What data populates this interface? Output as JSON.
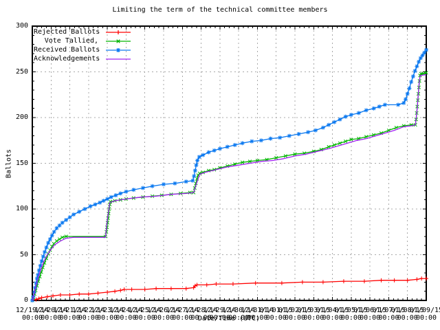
{
  "title": "Limiting the term of the technical committee members",
  "colors": {
    "background": "#ffffff",
    "axis": "#000000",
    "grid": "#a8a8a8",
    "rejected": "#ff0000",
    "tallied": "#00b400",
    "received": "#0a78f0",
    "acknowledgements": "#a020f0"
  },
  "chart_data": {
    "type": "line",
    "title": "Limiting the term of the technical committee members",
    "xlabel": "Date/Time (UTC)",
    "ylabel": "Ballots",
    "ylim": [
      0,
      300
    ],
    "y_tick_step": 50,
    "y_minor_step": 10,
    "x_range_days": 21,
    "x_minor_per_major": 4,
    "grid": true,
    "legend_position": "top-left-inside",
    "x_tick_time": "00:00",
    "x_tick_dates": [
      "12/19/14",
      "12/20/14",
      "12/21/14",
      "12/22/14",
      "12/23/14",
      "12/24/14",
      "12/25/14",
      "12/26/14",
      "12/27/14",
      "12/28/14",
      "12/29/14",
      "12/30/14",
      "12/31/14",
      "01/01/15",
      "01/02/15",
      "01/03/15",
      "01/04/15",
      "01/05/15",
      "01/06/15",
      "01/07/15",
      "01/08/15",
      "01/09/15"
    ],
    "series": [
      {
        "name": "Rejected Ballots",
        "color": "#ff0000",
        "marker": "plus",
        "points": [
          [
            0,
            0
          ],
          [
            0.2,
            1
          ],
          [
            0.35,
            2
          ],
          [
            0.5,
            3
          ],
          [
            0.8,
            4
          ],
          [
            1.1,
            5
          ],
          [
            1.5,
            6
          ],
          [
            2.0,
            6
          ],
          [
            2.5,
            7
          ],
          [
            3.0,
            7
          ],
          [
            3.5,
            8
          ],
          [
            4.0,
            9
          ],
          [
            4.4,
            10
          ],
          [
            4.7,
            11
          ],
          [
            4.9,
            12
          ],
          [
            5.3,
            12
          ],
          [
            6.0,
            12
          ],
          [
            6.6,
            13
          ],
          [
            7.4,
            13
          ],
          [
            8.2,
            13
          ],
          [
            8.6,
            14
          ],
          [
            8.68,
            16
          ],
          [
            8.78,
            17
          ],
          [
            9.3,
            17
          ],
          [
            9.8,
            18
          ],
          [
            10.7,
            18
          ],
          [
            11.9,
            19
          ],
          [
            13.3,
            19
          ],
          [
            14.4,
            20
          ],
          [
            15.5,
            20
          ],
          [
            16.6,
            21
          ],
          [
            17.7,
            21
          ],
          [
            18.6,
            22
          ],
          [
            19.3,
            22
          ],
          [
            20.0,
            22
          ],
          [
            20.5,
            23
          ],
          [
            20.75,
            24
          ],
          [
            21,
            24
          ]
        ]
      },
      {
        "name": "Vote Tallied,",
        "color": "#00b400",
        "marker": "cross",
        "points": [
          [
            0,
            0
          ],
          [
            0.06,
            3
          ],
          [
            0.12,
            7
          ],
          [
            0.18,
            11
          ],
          [
            0.25,
            16
          ],
          [
            0.32,
            21
          ],
          [
            0.4,
            26
          ],
          [
            0.48,
            31
          ],
          [
            0.56,
            36
          ],
          [
            0.65,
            41
          ],
          [
            0.75,
            46
          ],
          [
            0.85,
            51
          ],
          [
            0.95,
            55
          ],
          [
            1.05,
            59
          ],
          [
            1.15,
            62
          ],
          [
            1.3,
            65
          ],
          [
            1.45,
            67
          ],
          [
            1.6,
            69
          ],
          [
            1.8,
            70
          ],
          [
            3.9,
            70
          ],
          [
            3.95,
            75
          ],
          [
            3.98,
            80
          ],
          [
            4.01,
            85
          ],
          [
            4.04,
            90
          ],
          [
            4.07,
            95
          ],
          [
            4.1,
            100
          ],
          [
            4.13,
            105
          ],
          [
            4.16,
            108
          ],
          [
            4.4,
            109
          ],
          [
            4.7,
            110
          ],
          [
            5.0,
            111
          ],
          [
            5.4,
            112
          ],
          [
            5.9,
            113
          ],
          [
            6.4,
            114
          ],
          [
            6.9,
            115
          ],
          [
            7.4,
            116
          ],
          [
            7.9,
            117
          ],
          [
            8.4,
            118
          ],
          [
            8.6,
            118
          ],
          [
            8.66,
            123
          ],
          [
            8.72,
            128
          ],
          [
            8.78,
            133
          ],
          [
            8.84,
            137
          ],
          [
            8.92,
            139
          ],
          [
            9.1,
            140
          ],
          [
            9.4,
            142
          ],
          [
            9.7,
            143
          ],
          [
            10.0,
            145
          ],
          [
            10.4,
            147
          ],
          [
            10.8,
            149
          ],
          [
            11.2,
            151
          ],
          [
            11.6,
            152
          ],
          [
            12.0,
            153
          ],
          [
            12.5,
            154
          ],
          [
            13.0,
            156
          ],
          [
            13.5,
            158
          ],
          [
            14.0,
            160
          ],
          [
            14.5,
            161
          ],
          [
            15.0,
            163
          ],
          [
            15.4,
            165
          ],
          [
            15.8,
            168
          ],
          [
            16.1,
            170
          ],
          [
            16.4,
            172
          ],
          [
            16.7,
            174
          ],
          [
            17.0,
            176
          ],
          [
            17.4,
            177
          ],
          [
            17.8,
            179
          ],
          [
            18.2,
            181
          ],
          [
            18.6,
            183
          ],
          [
            19.0,
            186
          ],
          [
            19.4,
            189
          ],
          [
            19.8,
            191
          ],
          [
            20.2,
            192
          ],
          [
            20.42,
            192
          ],
          [
            20.46,
            198
          ],
          [
            20.49,
            205
          ],
          [
            20.52,
            212
          ],
          [
            20.55,
            219
          ],
          [
            20.58,
            226
          ],
          [
            20.61,
            233
          ],
          [
            20.64,
            240
          ],
          [
            20.67,
            246
          ],
          [
            20.72,
            248
          ],
          [
            20.85,
            248
          ],
          [
            21,
            249
          ]
        ]
      },
      {
        "name": "Received Ballots",
        "color": "#0a78f0",
        "marker": "star",
        "points": [
          [
            0,
            0
          ],
          [
            0.05,
            4
          ],
          [
            0.1,
            9
          ],
          [
            0.15,
            14
          ],
          [
            0.2,
            19
          ],
          [
            0.25,
            24
          ],
          [
            0.3,
            28
          ],
          [
            0.36,
            33
          ],
          [
            0.43,
            38
          ],
          [
            0.5,
            43
          ],
          [
            0.58,
            48
          ],
          [
            0.66,
            53
          ],
          [
            0.75,
            58
          ],
          [
            0.85,
            63
          ],
          [
            0.95,
            67
          ],
          [
            1.05,
            71
          ],
          [
            1.16,
            75
          ],
          [
            1.3,
            79
          ],
          [
            1.45,
            82
          ],
          [
            1.6,
            85
          ],
          [
            1.8,
            88
          ],
          [
            2.0,
            91
          ],
          [
            2.2,
            94
          ],
          [
            2.5,
            97
          ],
          [
            2.8,
            100
          ],
          [
            3.1,
            103
          ],
          [
            3.35,
            105
          ],
          [
            3.6,
            107
          ],
          [
            3.8,
            109
          ],
          [
            4.0,
            111
          ],
          [
            4.2,
            113
          ],
          [
            4.45,
            115
          ],
          [
            4.7,
            117
          ],
          [
            5.0,
            119
          ],
          [
            5.4,
            121
          ],
          [
            5.9,
            123
          ],
          [
            6.4,
            125
          ],
          [
            7.0,
            127
          ],
          [
            7.6,
            128
          ],
          [
            8.2,
            130
          ],
          [
            8.55,
            131
          ],
          [
            8.62,
            136
          ],
          [
            8.68,
            142
          ],
          [
            8.74,
            148
          ],
          [
            8.8,
            153
          ],
          [
            8.9,
            157
          ],
          [
            9.1,
            159
          ],
          [
            9.4,
            162
          ],
          [
            9.7,
            164
          ],
          [
            10.0,
            166
          ],
          [
            10.4,
            168
          ],
          [
            10.8,
            170
          ],
          [
            11.2,
            172
          ],
          [
            11.7,
            174
          ],
          [
            12.2,
            175
          ],
          [
            12.7,
            177
          ],
          [
            13.2,
            178
          ],
          [
            13.7,
            180
          ],
          [
            14.2,
            182
          ],
          [
            14.7,
            184
          ],
          [
            15.1,
            186
          ],
          [
            15.5,
            189
          ],
          [
            15.8,
            192
          ],
          [
            16.1,
            195
          ],
          [
            16.4,
            198
          ],
          [
            16.7,
            201
          ],
          [
            17.0,
            203
          ],
          [
            17.4,
            205
          ],
          [
            17.8,
            208
          ],
          [
            18.2,
            210
          ],
          [
            18.5,
            212
          ],
          [
            18.8,
            214
          ],
          [
            19.5,
            214
          ],
          [
            19.8,
            216
          ],
          [
            19.9,
            220
          ],
          [
            20.0,
            226
          ],
          [
            20.1,
            232
          ],
          [
            20.2,
            239
          ],
          [
            20.3,
            245
          ],
          [
            20.4,
            251
          ],
          [
            20.5,
            256
          ],
          [
            20.6,
            261
          ],
          [
            20.7,
            265
          ],
          [
            20.8,
            268
          ],
          [
            20.9,
            271
          ],
          [
            21,
            274
          ]
        ]
      },
      {
        "name": "Acknowledgements",
        "color": "#a020f0",
        "marker": "none",
        "points": [
          [
            0,
            0
          ],
          [
            0.15,
            12
          ],
          [
            0.3,
            24
          ],
          [
            0.45,
            34
          ],
          [
            0.6,
            42
          ],
          [
            0.8,
            50
          ],
          [
            1.0,
            56
          ],
          [
            1.2,
            61
          ],
          [
            1.5,
            65
          ],
          [
            1.8,
            68
          ],
          [
            2.2,
            69
          ],
          [
            3.9,
            69
          ],
          [
            4.0,
            88
          ],
          [
            4.13,
            107
          ],
          [
            4.4,
            109
          ],
          [
            5.0,
            111
          ],
          [
            5.8,
            113
          ],
          [
            6.6,
            114
          ],
          [
            7.4,
            116
          ],
          [
            8.2,
            117
          ],
          [
            8.6,
            118
          ],
          [
            8.75,
            128
          ],
          [
            8.92,
            138
          ],
          [
            9.2,
            140
          ],
          [
            9.8,
            143
          ],
          [
            10.4,
            146
          ],
          [
            11.0,
            148
          ],
          [
            11.6,
            150
          ],
          [
            12.2,
            152
          ],
          [
            12.8,
            153
          ],
          [
            13.4,
            155
          ],
          [
            14.0,
            158
          ],
          [
            14.6,
            160
          ],
          [
            15.2,
            163
          ],
          [
            15.8,
            166
          ],
          [
            16.3,
            169
          ],
          [
            16.8,
            172
          ],
          [
            17.3,
            175
          ],
          [
            17.8,
            177
          ],
          [
            18.3,
            180
          ],
          [
            18.8,
            183
          ],
          [
            19.3,
            186
          ],
          [
            19.8,
            190
          ],
          [
            20.2,
            191
          ],
          [
            20.42,
            192
          ],
          [
            20.52,
            210
          ],
          [
            20.62,
            238
          ],
          [
            20.68,
            246
          ],
          [
            21,
            247
          ]
        ]
      }
    ]
  }
}
